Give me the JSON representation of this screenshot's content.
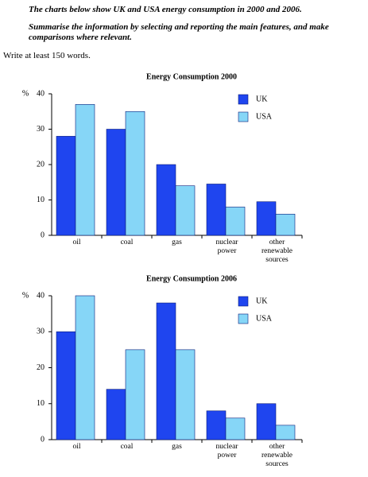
{
  "instructions": {
    "title": "The charts below show UK and USA energy consumption in 2000 and 2006.",
    "task": "Summarise the information by selecting and reporting the main features, and make comparisons where relevant.",
    "word_count": "Write at least 150 words."
  },
  "chart_data": [
    {
      "type": "bar",
      "title": "Energy Consumption 2000",
      "y_label": "%",
      "categories": [
        "oil",
        "coal",
        "gas",
        "nuclear power",
        "other renewable sources"
      ],
      "series": [
        {
          "name": "UK",
          "color": "#1f45ef",
          "values": [
            28,
            30,
            20,
            14.5,
            9.5
          ]
        },
        {
          "name": "USA",
          "color": "#86d6f7",
          "values": [
            37,
            35,
            14,
            8,
            6
          ]
        }
      ],
      "ylim": [
        0,
        40
      ],
      "yticks": [
        0,
        10,
        20,
        30,
        40
      ],
      "legend": "upper right"
    },
    {
      "type": "bar",
      "title": "Energy Consumption 2006",
      "y_label": "%",
      "categories": [
        "oil",
        "coal",
        "gas",
        "nuclear power",
        "other renewable sources"
      ],
      "series": [
        {
          "name": "UK",
          "color": "#1f45ef",
          "values": [
            30,
            14,
            38,
            8,
            10
          ]
        },
        {
          "name": "USA",
          "color": "#86d6f7",
          "values": [
            40,
            25,
            25,
            6,
            4
          ]
        }
      ],
      "ylim": [
        0,
        40
      ],
      "yticks": [
        0,
        10,
        20,
        30,
        40
      ],
      "legend": "upper right"
    }
  ]
}
